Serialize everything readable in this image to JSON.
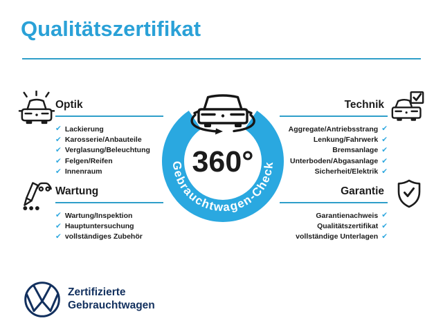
{
  "title": "Qualitätszertifikat",
  "check_glyph": "✔",
  "colors": {
    "accent": "#2AA1D7",
    "line": "#2E9EC9",
    "ring": "#2AA8E0",
    "check": "#2FA8DF",
    "navy": "#12305E",
    "ink": "#1B1B1B"
  },
  "badge": {
    "degree_label": "360°",
    "ring_label": "Gebrauchtwagen-Check",
    "icon": "car-rotation-icon"
  },
  "sections": {
    "optik": {
      "heading": "Optik",
      "icon": "car-shine-icon",
      "items": [
        "Lackierung",
        "Karosserie/Anbauteile",
        "Verglasung/Beleuchtung",
        "Felgen/Reifen",
        "Innenraum"
      ]
    },
    "technik": {
      "heading": "Technik",
      "icon": "car-checkbox-icon",
      "items": [
        "Aggregate/Antriebsstrang",
        "Lenkung/Fahrwerk",
        "Bremsanlage",
        "Unterboden/Abgasanlage",
        "Sicherheit/Elektrik"
      ]
    },
    "wartung": {
      "heading": "Wartung",
      "icon": "service-pen-icon",
      "items": [
        "Wartung/Inspektion",
        "Hauptuntersuchung",
        "vollständiges Zubehör"
      ]
    },
    "garantie": {
      "heading": "Garantie",
      "icon": "shield-check-icon",
      "items": [
        "Garantienachweis",
        "Qualitätszertifikat",
        "vollständige Unterlagen"
      ]
    }
  },
  "footer": {
    "logo": "vw-logo",
    "brand_line1": "Zertifizierte",
    "brand_line2": "Gebrauchtwagen"
  }
}
